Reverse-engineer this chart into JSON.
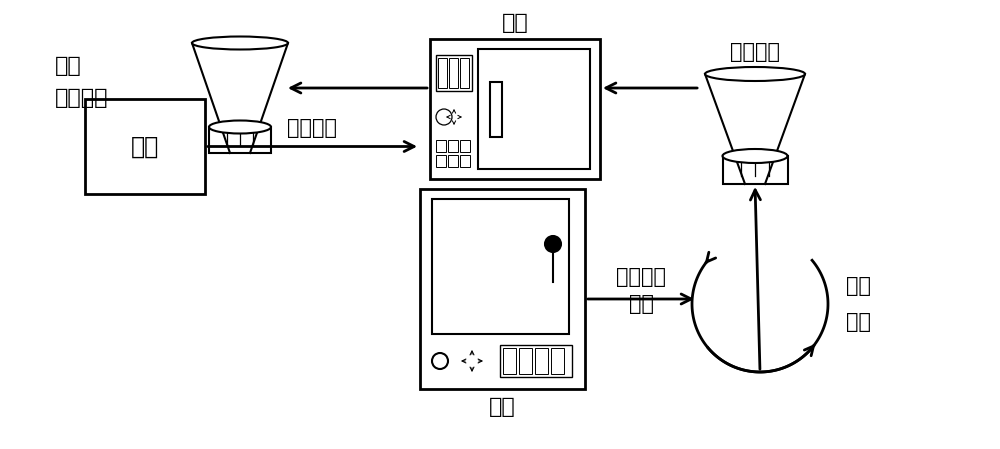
{
  "bg_color": "#ffffff",
  "line_color": "#000000",
  "labels": {
    "red_mud": "赤泥",
    "arrow1": "加碱研磨",
    "calcination": "焙烧",
    "arrow2_l1": "研磨破碎",
    "arrow2_l2": "加水",
    "stirring_l1": "磁力",
    "stirring_l2": "搅拌",
    "filtration": "真空抽滤",
    "drying": "烘焙",
    "product_l1": "赤泥基催",
    "product_l2": "化剂"
  },
  "font_size": 15
}
